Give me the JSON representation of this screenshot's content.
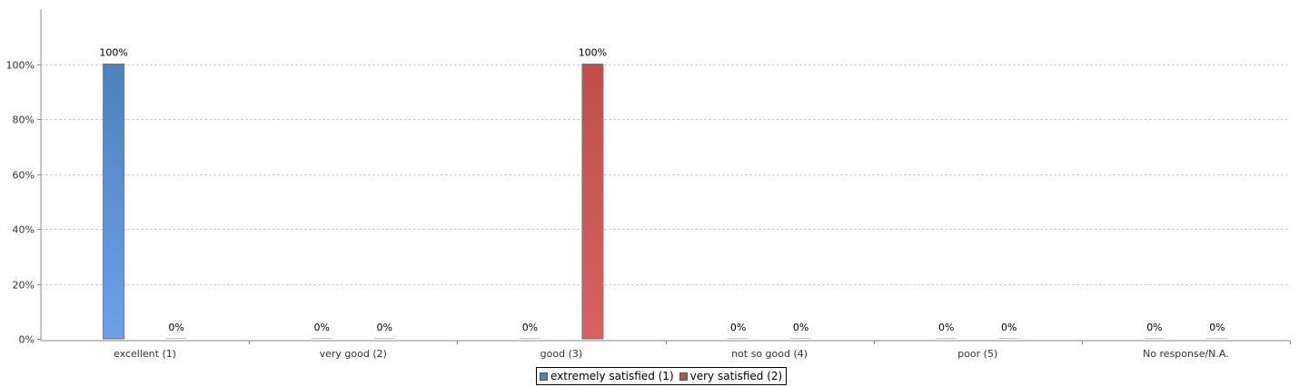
{
  "chart_data": {
    "type": "bar",
    "title": "",
    "xlabel": "",
    "ylabel": "",
    "ylim": [
      0,
      1.2
    ],
    "yticks": [
      0,
      0.2,
      0.4,
      0.6,
      0.8,
      1.0
    ],
    "ytick_labels": [
      "0%",
      "20%",
      "40%",
      "60%",
      "80%",
      "100%"
    ],
    "grid": true,
    "legend_position": "bottom-center",
    "categories": [
      "excellent (1)",
      "very good (2)",
      "good (3)",
      "not so good (4)",
      "poor (5)",
      "No response/N.A."
    ],
    "series": [
      {
        "name": "extremely satisfied (1)",
        "color": "#4f81bd",
        "color_light": "#6f9fe8",
        "values": [
          1.0,
          0,
          0,
          0,
          0,
          0
        ],
        "labels": [
          "100%",
          "0%",
          "0%",
          "0%",
          "0%",
          "0%"
        ]
      },
      {
        "name": "very satisfied (2)",
        "color": "#c0504d",
        "color_light": "#d96160",
        "values": [
          0,
          0,
          1.0,
          0,
          0,
          0
        ],
        "labels": [
          "0%",
          "0%",
          "100%",
          "0%",
          "0%",
          "0%"
        ]
      }
    ]
  }
}
